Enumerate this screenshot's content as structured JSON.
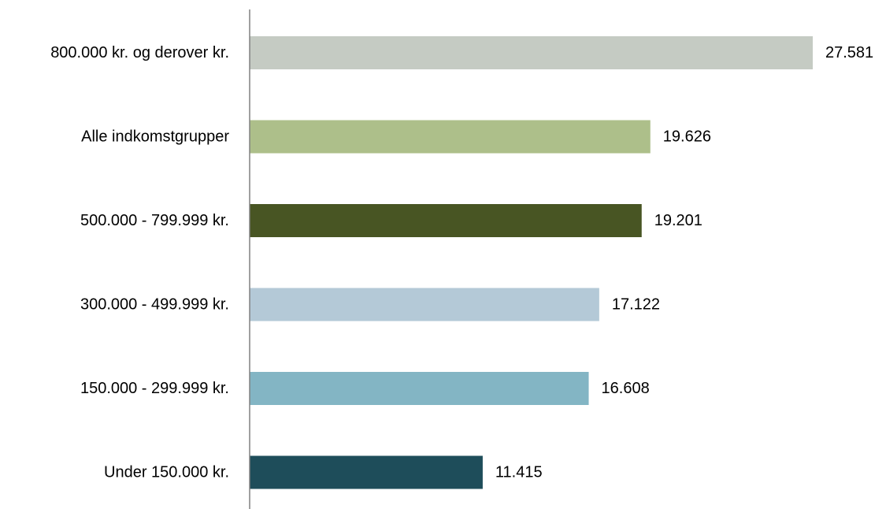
{
  "chart_data": {
    "type": "bar",
    "orientation": "horizontal",
    "categories": [
      "800.000 kr. og derover kr.",
      "Alle indkomstgrupper",
      "500.000 - 799.999 kr.",
      "300.000 - 499.999 kr.",
      "150.000 - 299.999 kr.",
      "Under 150.000 kr."
    ],
    "values": [
      27581,
      19626,
      19201,
      17122,
      16608,
      11415
    ],
    "value_labels": [
      "27.581",
      "19.626",
      "19.201",
      "17.122",
      "16.608",
      "11.415"
    ],
    "bar_colors": [
      "#c5cbc3",
      "#adbf8a",
      "#485523",
      "#b4c9d7",
      "#83b5c4",
      "#1e4d5a"
    ],
    "xlim": [
      0,
      27581
    ],
    "grid": false,
    "title": "",
    "xlabel": "",
    "ylabel": ""
  }
}
